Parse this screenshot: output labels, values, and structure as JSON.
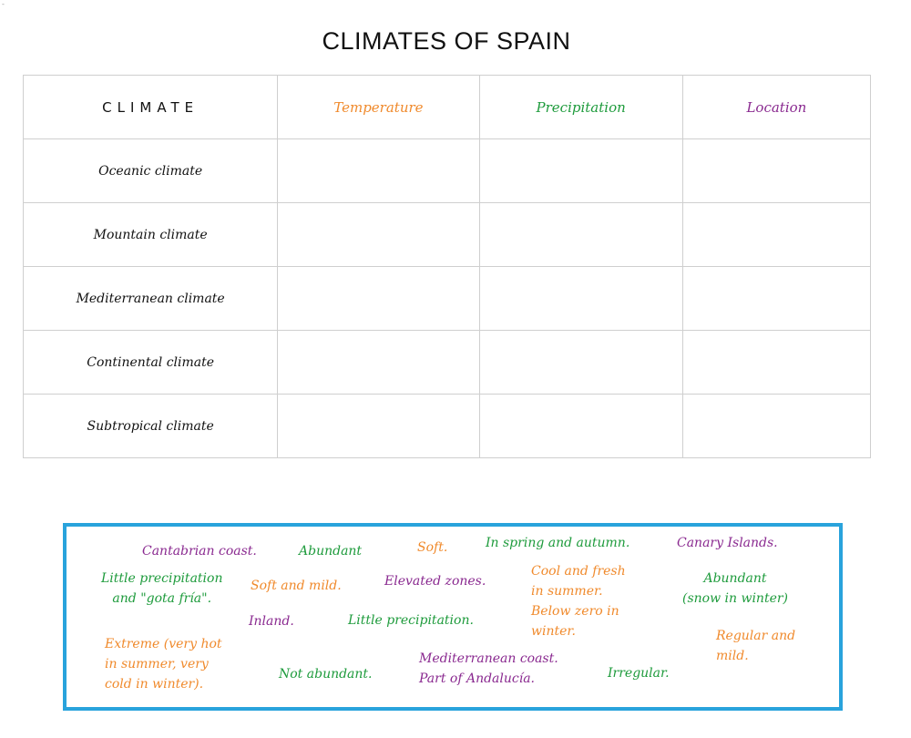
{
  "page": {
    "title": "CLIMATES OF SPAIN",
    "corner_mark": "-"
  },
  "colors": {
    "temperature": "#f08a2c",
    "precipitation": "#1e9b3c",
    "location": "#8a2a90",
    "bank_border": "#29a3dc"
  },
  "table": {
    "headers": {
      "climate": "CLIMATE",
      "temperature": "Temperature",
      "precipitation": "Precipitation",
      "location": "Location"
    },
    "rows": [
      {
        "label": "Oceanic climate"
      },
      {
        "label": "Mountain climate"
      },
      {
        "label": "Mediterranean climate"
      },
      {
        "label": "Continental climate"
      },
      {
        "label": "Subtropical climate"
      }
    ]
  },
  "word_bank": {
    "tiles": [
      {
        "id": "cantabrian",
        "lines": [
          "Cantabrian coast."
        ],
        "category": "location"
      },
      {
        "id": "abundant",
        "lines": [
          "Abundant"
        ],
        "category": "precipitation"
      },
      {
        "id": "soft",
        "lines": [
          "Soft."
        ],
        "category": "temperature"
      },
      {
        "id": "spring-autumn",
        "lines": [
          "In spring and autumn."
        ],
        "category": "precipitation"
      },
      {
        "id": "canary",
        "lines": [
          "Canary Islands."
        ],
        "category": "location"
      },
      {
        "id": "little-gota",
        "lines": [
          "Little precipitation",
          "and \"gota fría\"."
        ],
        "category": "precipitation"
      },
      {
        "id": "soft-mild",
        "lines": [
          "Soft and mild."
        ],
        "category": "temperature"
      },
      {
        "id": "elevated",
        "lines": [
          "Elevated zones."
        ],
        "category": "location"
      },
      {
        "id": "cool-fresh",
        "lines": [
          "Cool and fresh",
          "in summer.",
          "Below zero in",
          "winter."
        ],
        "category": "temperature"
      },
      {
        "id": "abundant-snow",
        "lines": [
          "Abundant",
          "(snow in winter)"
        ],
        "category": "precipitation"
      },
      {
        "id": "inland",
        "lines": [
          "Inland."
        ],
        "category": "location"
      },
      {
        "id": "little-prec",
        "lines": [
          "Little precipitation."
        ],
        "category": "precipitation"
      },
      {
        "id": "extreme",
        "lines": [
          "Extreme (very hot",
          "in summer, very",
          "cold in winter)."
        ],
        "category": "temperature"
      },
      {
        "id": "regular-mild",
        "lines": [
          "Regular and",
          "mild."
        ],
        "category": "temperature"
      },
      {
        "id": "not-abundant",
        "lines": [
          "Not abundant."
        ],
        "category": "precipitation"
      },
      {
        "id": "med-coast",
        "lines": [
          "Mediterranean coast.",
          "Part of Andalucía."
        ],
        "category": "location"
      },
      {
        "id": "irregular",
        "lines": [
          "Irregular."
        ],
        "category": "precipitation"
      }
    ]
  }
}
